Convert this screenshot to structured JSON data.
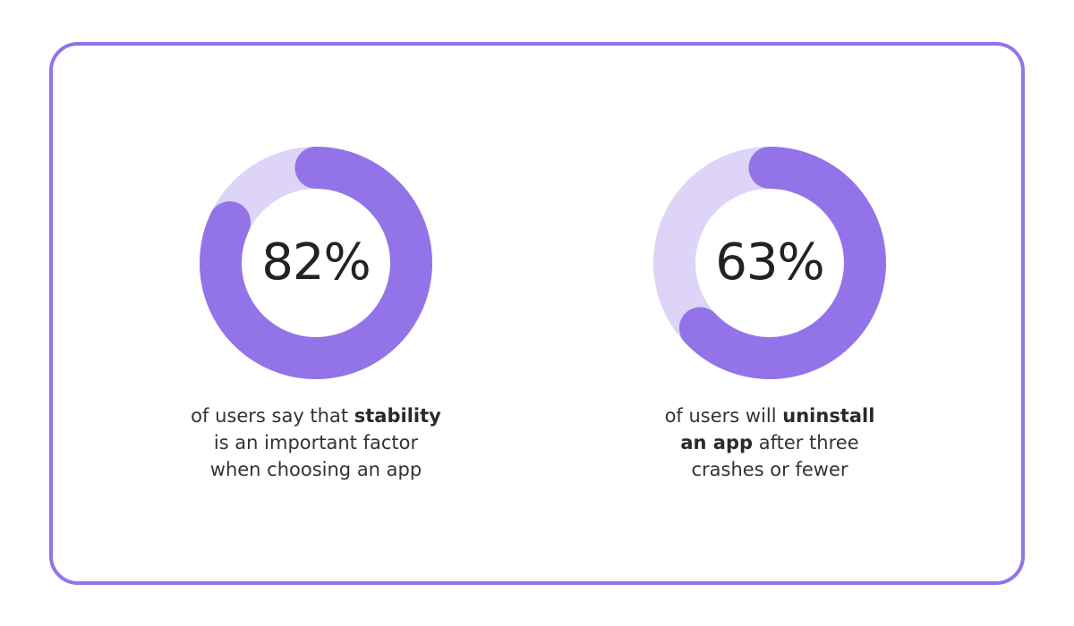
{
  "colors": {
    "border": "#9274e8",
    "arc_fill": "#9274e8",
    "arc_track": "#ded4f7",
    "text": "#222222"
  },
  "stats": [
    {
      "percent_label": "82%",
      "value": 82,
      "caption_lines": [
        [
          {
            "text": "of users say that ",
            "bold": false
          },
          {
            "text": "stability",
            "bold": true
          }
        ],
        [
          {
            "text": "is an important factor",
            "bold": false
          }
        ],
        [
          {
            "text": "when choosing an app",
            "bold": false
          }
        ]
      ]
    },
    {
      "percent_label": "63%",
      "value": 63,
      "caption_lines": [
        [
          {
            "text": "of users will ",
            "bold": false
          },
          {
            "text": "uninstall",
            "bold": true
          }
        ],
        [
          {
            "text": "an app",
            "bold": true
          },
          {
            "text": " after three",
            "bold": false
          }
        ],
        [
          {
            "text": "crashes or fewer",
            "bold": false
          }
        ]
      ]
    }
  ],
  "chart_data": [
    {
      "type": "pie",
      "subtype": "donut",
      "title": "",
      "categories": [
        "stability important",
        "other"
      ],
      "values": [
        82,
        18
      ],
      "center_label": "82%",
      "caption": "of users say that stability is an important factor when choosing an app",
      "colors": [
        "#9274e8",
        "#ded4f7"
      ]
    },
    {
      "type": "pie",
      "subtype": "donut",
      "title": "",
      "categories": [
        "uninstall after three crashes or fewer",
        "other"
      ],
      "values": [
        63,
        37
      ],
      "center_label": "63%",
      "caption": "of users will uninstall an app after three crashes or fewer",
      "colors": [
        "#9274e8",
        "#ded4f7"
      ]
    }
  ]
}
